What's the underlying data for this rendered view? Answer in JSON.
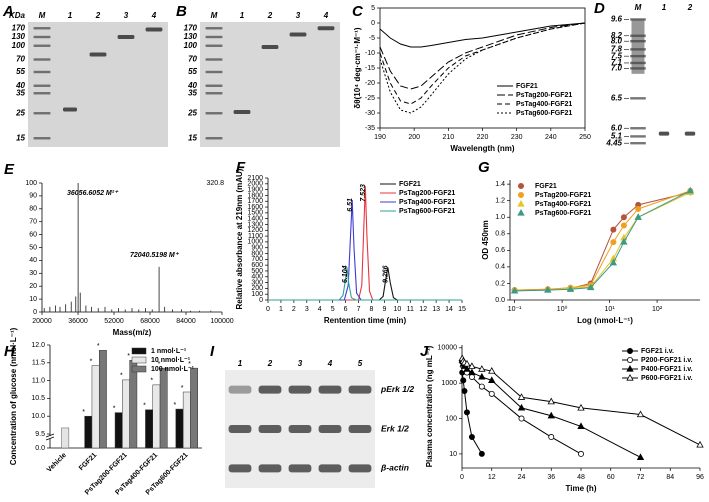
{
  "panels": {
    "A": {
      "letter": "A",
      "unit": "KDa",
      "lanes": [
        "M",
        "1",
        "2",
        "3",
        "4"
      ],
      "markers": [
        "170",
        "130",
        "100",
        "70",
        "55",
        "40",
        "35",
        "25",
        "15"
      ]
    },
    "B": {
      "letter": "B",
      "lanes": [
        "M",
        "1",
        "2",
        "3",
        "4"
      ],
      "markers": [
        "170",
        "130",
        "100",
        "70",
        "55",
        "40",
        "35",
        "25",
        "15"
      ]
    },
    "D": {
      "letter": "D",
      "lanes": [
        "M",
        "1",
        "2"
      ],
      "markers": [
        "9.6",
        "8.2",
        "8.0",
        "7.8",
        "7.5",
        "7.1",
        "7.0",
        "6.5",
        "6.0",
        "5.1",
        "4.45"
      ]
    },
    "I": {
      "letter": "I",
      "lanes": [
        "1",
        "2",
        "3",
        "4",
        "5"
      ],
      "rows": [
        "pErk 1/2",
        "Erk 1/2",
        "β-actin"
      ]
    }
  },
  "chart_data": [
    {
      "type": "line",
      "panel": "C",
      "xlabel": "Wavelength (nm)",
      "ylabel": "δθ(10⁴ deg·cm⁻¹·M⁻¹)",
      "x": [
        190,
        193,
        196,
        199,
        202,
        205,
        210,
        215,
        220,
        225,
        230,
        240,
        250
      ],
      "xlim": [
        190,
        250
      ],
      "xticks": [
        190,
        200,
        210,
        220,
        230,
        240,
        250
      ],
      "ylim": [
        -35,
        5
      ],
      "yticks": [
        5,
        0,
        -5,
        -10,
        -15,
        -20,
        -25,
        -30,
        -35
      ],
      "legend": "lower right",
      "frame": "box",
      "series": [
        {
          "name": "FGF21",
          "color": "#000000",
          "dash": "solid",
          "values": [
            -2,
            -5,
            -7,
            -8,
            -8,
            -7.5,
            -6.5,
            -5.5,
            -5,
            -4,
            -3,
            -1,
            0
          ]
        },
        {
          "name": "PsTag200-FGF21",
          "color": "#000000",
          "dash": "long-dash",
          "values": [
            -8,
            -16,
            -21,
            -22,
            -21,
            -18,
            -13,
            -10,
            -8,
            -6,
            -4,
            -1.5,
            0
          ]
        },
        {
          "name": "PsTag400-FGF21",
          "color": "#000000",
          "dash": "dash",
          "values": [
            -10,
            -20,
            -26,
            -27,
            -25,
            -21,
            -15,
            -11,
            -9,
            -7,
            -5,
            -2,
            0
          ]
        },
        {
          "name": "PsTag600-FGF21",
          "color": "#000000",
          "dash": "short-dash",
          "values": [
            -12,
            -23,
            -29,
            -30,
            -28,
            -24,
            -17,
            -12,
            -9,
            -7,
            -5,
            -2,
            0
          ]
        }
      ]
    },
    {
      "type": "stem",
      "panel": "E",
      "xlabel": "Mass(m/z)",
      "scale_max": 320.8,
      "color": "#333333",
      "annotations": [
        "36056.6052 M²⁺",
        "72040.5198 M⁺"
      ],
      "x": [
        21000,
        23500,
        26000,
        28000,
        30500,
        33000,
        35000,
        36056.6052,
        37000,
        39500,
        42000,
        45000,
        48000,
        51000,
        54000,
        57000,
        60000,
        63000,
        66000,
        69000,
        72040.5198,
        74500,
        78000,
        82000,
        86000,
        90000,
        95000
      ],
      "values": [
        3,
        4,
        5,
        4,
        6,
        8,
        12,
        100,
        15,
        5,
        4,
        3,
        4,
        2,
        3,
        2,
        3,
        2,
        3,
        2,
        35,
        4,
        2,
        2,
        1,
        1,
        1
      ],
      "xlim": [
        20000,
        100000
      ],
      "xticks": [
        20000,
        36000,
        52000,
        68000,
        84000,
        100000
      ],
      "ylim": [
        0,
        100
      ],
      "yticks": [
        0,
        10,
        20,
        30,
        40,
        50,
        60,
        70,
        80,
        90,
        100
      ],
      "frame": "axes"
    },
    {
      "type": "chromatogram",
      "panel": "F",
      "xlabel": "Rentention time (min)",
      "ylabel": "Relative absorbance at 219nm (mAU)",
      "xlim": [
        0,
        15
      ],
      "xticks": [
        0,
        1,
        2,
        3,
        4,
        5,
        6,
        7,
        8,
        9,
        10,
        11,
        12,
        13,
        14,
        15
      ],
      "ylim": [
        0,
        2100
      ],
      "yticks": [
        0,
        100,
        200,
        300,
        400,
        500,
        600,
        700,
        800,
        900,
        1000,
        1100,
        1200,
        1300,
        1400,
        1500,
        1600,
        1700,
        1800,
        1900,
        2000,
        2100
      ],
      "legend": "upper right",
      "frame": "axes",
      "series": [
        {
          "name": "FGF21",
          "color": "#111111",
          "peak_rt": 9.266,
          "x": [
            0,
            8.6,
            8.9,
            9.1,
            9.266,
            9.45,
            9.7,
            10,
            15
          ],
          "values": [
            0,
            0,
            60,
            350,
            560,
            300,
            40,
            0,
            0
          ]
        },
        {
          "name": "PsTag200-FGF21",
          "color": "#e8363f",
          "peak_rt": 7.523,
          "x": [
            0,
            7,
            7.25,
            7.4,
            7.523,
            7.65,
            7.85,
            8.1,
            15
          ],
          "values": [
            0,
            0,
            250,
            1200,
            1960,
            1100,
            150,
            0,
            0
          ]
        },
        {
          "name": "PsTag400-FGF21",
          "color": "#3b3bd6",
          "peak_rt": 6.51,
          "x": [
            0,
            5.9,
            6.2,
            6.38,
            6.51,
            6.65,
            6.85,
            7.2,
            15
          ],
          "values": [
            0,
            0,
            250,
            1100,
            1720,
            900,
            120,
            0,
            0
          ]
        },
        {
          "name": "PsTag600-FGF21",
          "color": "#2aa39a",
          "peak_rt": 6.104,
          "x": [
            0,
            5.5,
            5.8,
            5.98,
            6.104,
            6.25,
            6.45,
            6.8,
            15
          ],
          "values": [
            0,
            0,
            80,
            330,
            560,
            280,
            40,
            0,
            0
          ]
        }
      ]
    },
    {
      "type": "scatter-line",
      "panel": "G",
      "xlabel": "Log (nmol·L⁻¹)",
      "ylabel": "OD 450nm",
      "x": [
        0.1,
        0.5,
        1.5,
        4,
        12,
        20,
        40,
        500
      ],
      "xlog": true,
      "xlim": [
        0.08,
        800
      ],
      "xticks": [
        {
          "value": 0.1,
          "label": "10⁻¹"
        },
        {
          "value": 1,
          "label": "10⁰"
        },
        {
          "value": 10,
          "label": "10¹"
        },
        {
          "value": 100,
          "label": "10²"
        }
      ],
      "ylim": [
        0,
        1.45
      ],
      "yticks": [
        {
          "value": 0,
          "label": "0.0"
        },
        0.2,
        0.4,
        0.6,
        0.8,
        {
          "value": 1,
          "label": "1.0"
        },
        1.2,
        1.4
      ],
      "legend": "upper left",
      "frame": "axes",
      "series": [
        {
          "name": "FGF21",
          "color": "#b5533c",
          "marker": "circle",
          "values": [
            0.12,
            0.13,
            0.14,
            0.2,
            0.85,
            1.0,
            1.15,
            1.3
          ]
        },
        {
          "name": "PsTag200-FGF21",
          "color": "#f0a020",
          "marker": "circle",
          "values": [
            0.12,
            0.13,
            0.15,
            0.18,
            0.7,
            0.9,
            1.1,
            1.32
          ]
        },
        {
          "name": "PsTag400-FGF21",
          "color": "#e3c62a",
          "marker": "triangle",
          "values": [
            0.11,
            0.12,
            0.14,
            0.16,
            0.5,
            0.75,
            1.0,
            1.3
          ]
        },
        {
          "name": "PsTag600-FGF21",
          "color": "#3a9a8a",
          "marker": "triangle",
          "values": [
            0.11,
            0.12,
            0.13,
            0.15,
            0.45,
            0.7,
            1.0,
            1.32
          ]
        }
      ]
    },
    {
      "type": "bar",
      "panel": "H",
      "ylabel": "Concentration of glucose (nmol·L⁻¹)",
      "significance": "*",
      "categories": [
        "Vehicle",
        "FGF21",
        "PsTag200-FGF21",
        "PsTag400-FGF21",
        "PsTag600-FGF21"
      ],
      "control": {
        "value": 9.67,
        "color": "#e4e4e4"
      },
      "ylim": [
        0,
        12
      ],
      "ybreak": 9.5,
      "yticks": [
        {
          "value": 0,
          "label": "0.0"
        },
        9.5,
        {
          "value": 10,
          "label": "10.0"
        },
        10.5,
        {
          "value": 11,
          "label": "11.0"
        },
        11.5,
        {
          "value": 12,
          "label": "12.0"
        }
      ],
      "legend": "upper right",
      "frame": "axes",
      "series": [
        {
          "name": "1 nmol·L⁻¹",
          "color": "#111111",
          "values": [
            null,
            10.0,
            10.1,
            10.18,
            10.2
          ]
        },
        {
          "name": "10 nmol·L⁻¹",
          "color": "#e8e8e8",
          "values": [
            null,
            11.42,
            11.02,
            10.88,
            10.68
          ]
        },
        {
          "name": "100 nmol·L⁻¹",
          "color": "#777777",
          "values": [
            null,
            11.85,
            11.57,
            11.35,
            11.35
          ]
        }
      ]
    },
    {
      "type": "line",
      "panel": "J",
      "xlabel": "Time (h)",
      "ylabel": "Plasma concentration (ng mL⁻¹)",
      "x": [
        0.083,
        0.5,
        1,
        2,
        4,
        8,
        12,
        24,
        36,
        48,
        72,
        96
      ],
      "xlim": [
        0,
        96
      ],
      "xticks": [
        0,
        12,
        24,
        36,
        48,
        60,
        72,
        84,
        96
      ],
      "ylog": true,
      "ylim": [
        4,
        12000
      ],
      "yticks": [
        10,
        100,
        1000,
        10000
      ],
      "legend": "upper right",
      "frame": "axes",
      "series": [
        {
          "name": "FGF21 i.v.",
          "color": "#000000",
          "marker": "circle",
          "filled": true,
          "values": [
            2000,
            1200,
            600,
            150,
            30,
            10,
            null,
            null,
            null,
            null,
            null,
            null
          ]
        },
        {
          "name": "P200-FGF21 i.v.",
          "color": "#000000",
          "marker": "circle",
          "filled": false,
          "values": [
            4000,
            3000,
            2500,
            2000,
            1500,
            800,
            500,
            100,
            30,
            10,
            null,
            null
          ]
        },
        {
          "name": "P400-FGF21 i.v.",
          "color": "#000000",
          "marker": "triangle",
          "filled": true,
          "values": [
            4500,
            3500,
            3000,
            2500,
            2000,
            1500,
            1200,
            200,
            120,
            60,
            8,
            null
          ]
        },
        {
          "name": "P600-FGF21 i.v.",
          "color": "#000000",
          "marker": "triangle",
          "filled": false,
          "values": [
            5000,
            4200,
            3800,
            3500,
            3000,
            2500,
            2200,
            400,
            300,
            200,
            130,
            18
          ]
        }
      ]
    }
  ]
}
